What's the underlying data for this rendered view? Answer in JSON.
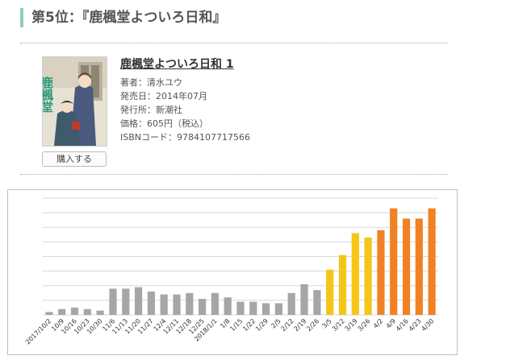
{
  "heading": "第5位：『鹿楓堂よついろ日和』",
  "book": {
    "title": "鹿楓堂よついろ日和 1",
    "author": "著者：清水ユウ",
    "release": "発売日：2014年07月",
    "publisher": "発行所：新潮社",
    "price": "価格：605円（税込）",
    "isbn": "ISBNコード：9784107717566",
    "buy_label": "購入する",
    "cover_text": "鹿楓堂"
  },
  "colors": {
    "accent": "#8fd0b6",
    "bar_gray": "#a6a6a6",
    "bar_yellow": "#f5c518",
    "bar_orange": "#f08224"
  },
  "chart_data": {
    "type": "bar",
    "categories": [
      "2017/10/2",
      "10/9",
      "10/16",
      "10/23",
      "10/30",
      "11/6",
      "11/13",
      "11/20",
      "11/27",
      "12/4",
      "12/11",
      "12/18",
      "12/25",
      "2018/1/1",
      "1/8",
      "1/15",
      "1/22",
      "1/29",
      "2/5",
      "2/12",
      "2/19",
      "2/26",
      "3/5",
      "3/12",
      "3/19",
      "3/26",
      "4/2",
      "4/9",
      "4/16",
      "4/23",
      "4/30"
    ],
    "values": [
      1,
      2,
      2.5,
      2,
      1.5,
      9,
      9,
      9.5,
      8,
      7,
      7,
      7.5,
      5.5,
      7.5,
      6,
      4.5,
      4.5,
      4,
      4,
      7.5,
      10.5,
      8.5,
      15.5,
      20.5,
      28,
      26.5,
      29,
      36.5,
      33,
      33,
      36.5
    ],
    "colors": [
      "gray",
      "gray",
      "gray",
      "gray",
      "gray",
      "gray",
      "gray",
      "gray",
      "gray",
      "gray",
      "gray",
      "gray",
      "gray",
      "gray",
      "gray",
      "gray",
      "gray",
      "gray",
      "gray",
      "gray",
      "gray",
      "gray",
      "yellow",
      "yellow",
      "yellow",
      "yellow",
      "orange",
      "orange",
      "orange",
      "orange",
      "orange"
    ],
    "ylim": [
      0,
      40
    ],
    "grid": true
  }
}
